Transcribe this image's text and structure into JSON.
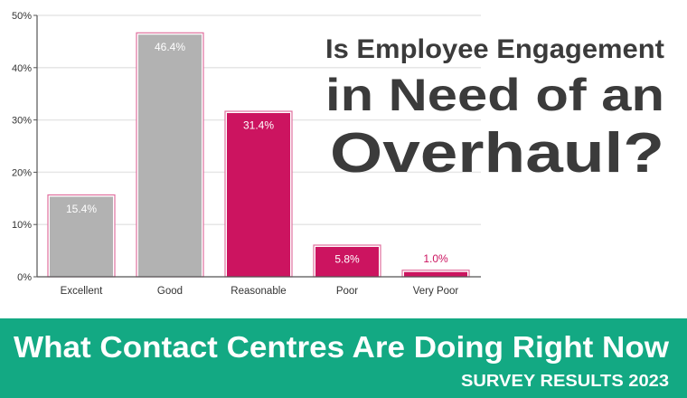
{
  "headline": {
    "line1": "Is Employee Engagement",
    "line2": "in Need of an",
    "line3": "Overhaul?"
  },
  "banner": {
    "title": "What Contact Centres Are Doing Right Now",
    "subtitle": "SURVEY RESULTS 2023"
  },
  "colors": {
    "accent": "#cc1460",
    "neutral_bar": "#b2b2b2",
    "banner": "#13a983",
    "headline": "#3b3b3b"
  },
  "chart_data": {
    "type": "bar",
    "categories": [
      "Excellent",
      "Good",
      "Reasonable",
      "Poor",
      "Very Poor"
    ],
    "values": [
      15.4,
      46.4,
      31.4,
      5.8,
      1.0
    ],
    "data_labels": [
      "15.4%",
      "46.4%",
      "31.4%",
      "5.8%",
      "1.0%"
    ],
    "bar_colors": [
      "#b2b2b2",
      "#b2b2b2",
      "#cc1460",
      "#cc1460",
      "#cc1460"
    ],
    "yticks": [
      "0%",
      "10%",
      "20%",
      "30%",
      "40%",
      "50%"
    ],
    "ylim": [
      0,
      50
    ],
    "grid": true,
    "xlabel": "",
    "ylabel": ""
  }
}
